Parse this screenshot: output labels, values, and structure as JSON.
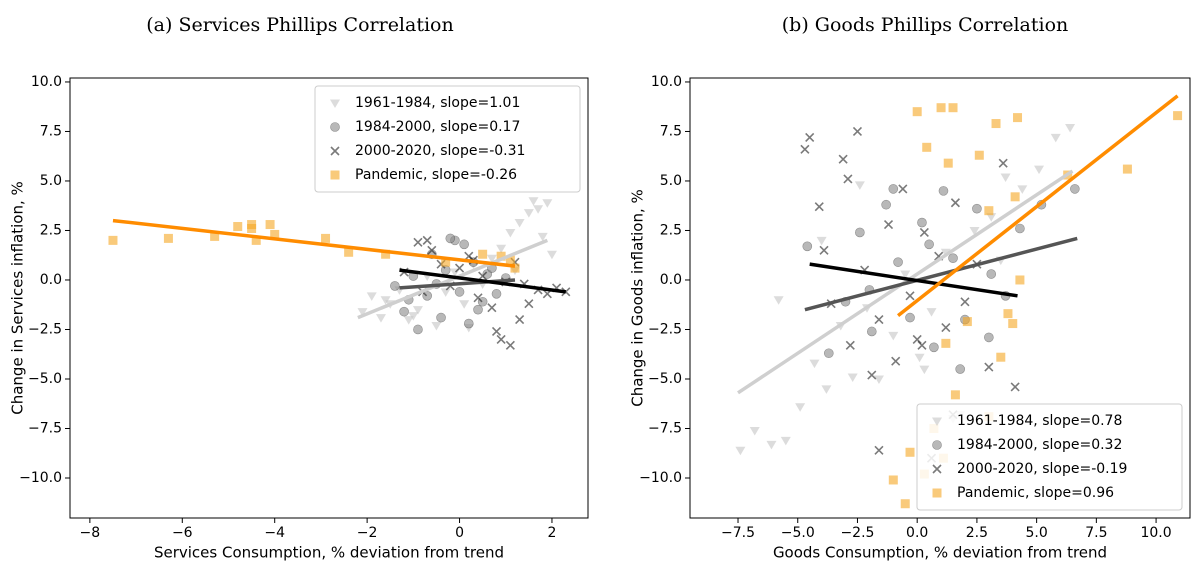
{
  "chart_data": [
    {
      "type": "scatter",
      "title": "(a) Services Phillips Correlation",
      "x_label": "Services Consumption, % deviation from trend",
      "y_label": "Change in Services inflation, %",
      "xlim": [
        -8.43,
        2.78
      ],
      "ylim": [
        -12.02,
        10.2
      ],
      "xticks": [
        {
          "value": -8,
          "label": "−8"
        },
        {
          "value": -6,
          "label": "−6"
        },
        {
          "value": -4,
          "label": "−4"
        },
        {
          "value": -2,
          "label": "−2"
        },
        0,
        2
      ],
      "yticks": [
        {
          "value": -10,
          "label": "−10.0"
        },
        {
          "value": -7.5,
          "label": "−7.5"
        },
        {
          "value": -5,
          "label": "−5.0"
        },
        {
          "value": -2.5,
          "label": "−2.5"
        },
        {
          "value": 0,
          "label": "0.0"
        },
        2.5,
        {
          "value": 5,
          "label": "5.0"
        },
        7.5,
        {
          "value": 10,
          "label": "10.0"
        }
      ],
      "legend": "upper right",
      "series": [
        {
          "name": "1961-1984, slope=1.01",
          "color": "#c4c4c4",
          "marker": "triangle-down",
          "x": [
            -2.1,
            -1.9,
            -1.7,
            -1.5,
            -1.3,
            -1.1,
            -0.9,
            -0.7,
            -0.5,
            -0.3,
            -0.1,
            0.1,
            0.3,
            0.5,
            0.7,
            0.9,
            1.1,
            1.3,
            1.5,
            1.6,
            1.7,
            1.8,
            1.9,
            2.0,
            -1.0,
            0.2,
            1.2,
            -1.6
          ],
          "y": [
            -1.6,
            -0.8,
            -1.9,
            -1.2,
            -0.5,
            -2.0,
            -1.5,
            0.2,
            -2.3,
            -0.6,
            0.4,
            -1.2,
            0.8,
            -0.2,
            1.1,
            1.6,
            2.4,
            2.9,
            3.4,
            4.0,
            3.6,
            2.2,
            3.9,
            1.3,
            -1.8,
            -2.4,
            0.5,
            -1.0
          ],
          "fit": {
            "color": "#cfcfcf",
            "x": [
              -2.2,
              1.9
            ],
            "y": [
              -1.9,
              2.0
            ]
          }
        },
        {
          "name": "1984-2000, slope=0.17",
          "color": "#8a8a8a",
          "marker": "circle",
          "x": [
            -1.4,
            -1.2,
            -1.0,
            -0.9,
            -0.7,
            -0.6,
            -0.4,
            -0.3,
            -0.1,
            0.0,
            0.1,
            0.2,
            0.3,
            0.5,
            0.6,
            0.8,
            1.0,
            -0.5,
            -0.2,
            0.4,
            -1.1,
            0.7
          ],
          "y": [
            -0.3,
            -1.6,
            0.2,
            -2.5,
            -0.8,
            1.3,
            -1.9,
            0.5,
            2.0,
            -0.6,
            1.8,
            -2.2,
            0.9,
            -1.1,
            0.3,
            -0.7,
            0.1,
            -0.2,
            2.1,
            -1.5,
            -1.0,
            0.6
          ],
          "fit": {
            "color": "#555555",
            "x": [
              -1.3,
              1.2
            ],
            "y": [
              -0.4,
              0.0
            ]
          }
        },
        {
          "name": "2000-2020, slope=-0.31",
          "color": "#222222",
          "marker": "x",
          "x": [
            -1.2,
            -0.9,
            -0.8,
            -0.6,
            -0.4,
            -0.2,
            0.0,
            0.2,
            0.4,
            0.5,
            0.7,
            0.9,
            1.0,
            1.1,
            1.3,
            1.5,
            1.7,
            1.9,
            2.1,
            2.3,
            0.8,
            1.2,
            1.4,
            -0.7,
            0.3
          ],
          "y": [
            0.4,
            1.9,
            -0.6,
            1.5,
            0.8,
            -0.3,
            0.6,
            1.2,
            -0.9,
            0.2,
            -1.4,
            -3.0,
            -0.1,
            -3.3,
            -2.0,
            -1.2,
            -0.5,
            -0.7,
            -0.4,
            -0.6,
            -2.6,
            0.9,
            -0.2,
            2.0,
            1.0
          ],
          "fit": {
            "color": "#000000",
            "x": [
              -1.3,
              2.3
            ],
            "y": [
              0.5,
              -0.6
            ]
          }
        },
        {
          "name": "Pandemic, slope=-0.26",
          "color": "#f5a623",
          "marker": "square",
          "x": [
            -7.5,
            -6.3,
            -5.3,
            -4.8,
            -4.5,
            -4.5,
            -4.4,
            -4.1,
            -4.0,
            -2.9,
            -2.4,
            -1.6,
            -0.3,
            0.5,
            0.9,
            1.1,
            1.2
          ],
          "y": [
            2.0,
            2.1,
            2.2,
            2.7,
            2.8,
            2.6,
            2.0,
            2.8,
            2.3,
            2.1,
            1.4,
            1.3,
            0.9,
            1.3,
            1.2,
            1.0,
            0.6
          ],
          "fit": {
            "color": "#ff8c00",
            "x": [
              -7.5,
              1.2
            ],
            "y": [
              3.0,
              0.7
            ]
          }
        }
      ]
    },
    {
      "type": "scatter",
      "title": "(b) Goods Phillips Correlation",
      "x_label": "Goods Consumption, % deviation from trend",
      "y_label": "Change in Goods inflation, %",
      "xlim": [
        -9.51,
        11.42
      ],
      "ylim": [
        -12.02,
        10.2
      ],
      "xticks": [
        {
          "value": -7.5,
          "label": "−7.5"
        },
        {
          "value": -5,
          "label": "−5.0"
        },
        {
          "value": -2.5,
          "label": "−2.5"
        },
        {
          "value": 0,
          "label": "0.0"
        },
        2.5,
        {
          "value": 5,
          "label": "5.0"
        },
        7.5,
        {
          "value": 10,
          "label": "10.0"
        }
      ],
      "yticks": [
        {
          "value": -10,
          "label": "−10.0"
        },
        {
          "value": -7.5,
          "label": "−7.5"
        },
        {
          "value": -5,
          "label": "−5.0"
        },
        {
          "value": -2.5,
          "label": "−2.5"
        },
        {
          "value": 0,
          "label": "0.0"
        },
        2.5,
        {
          "value": 5,
          "label": "5.0"
        },
        7.5,
        {
          "value": 10,
          "label": "10.0"
        }
      ],
      "legend": "lower right",
      "series": [
        {
          "name": "1961-1984, slope=0.78",
          "color": "#c4c4c4",
          "marker": "triangle-down",
          "x": [
            -7.4,
            -6.8,
            -6.1,
            -5.5,
            -4.9,
            -4.3,
            -3.8,
            -3.2,
            -2.7,
            -2.1,
            -1.6,
            -1.0,
            -0.5,
            0.1,
            0.6,
            1.2,
            1.8,
            2.4,
            3.1,
            3.7,
            4.4,
            5.1,
            5.8,
            6.4,
            -5.8,
            -4.0,
            -2.4,
            1.5,
            3.5,
            0.3
          ],
          "y": [
            -8.6,
            -7.6,
            -8.3,
            -8.1,
            -6.4,
            -4.2,
            -5.5,
            -2.3,
            -4.9,
            -1.4,
            -5.0,
            -2.8,
            0.3,
            -3.9,
            -1.6,
            1.4,
            -6.8,
            2.5,
            3.2,
            5.2,
            4.6,
            5.6,
            7.2,
            7.7,
            -1.0,
            2.0,
            4.8,
            -7.0,
            1.0,
            -4.5
          ],
          "fit": {
            "color": "#cfcfcf",
            "x": [
              -7.5,
              6.5
            ],
            "y": [
              -5.7,
              5.5
            ]
          }
        },
        {
          "name": "1984-2000, slope=0.32",
          "color": "#8a8a8a",
          "marker": "circle",
          "x": [
            -4.6,
            -3.7,
            -3.0,
            -2.4,
            -1.9,
            -1.3,
            -0.8,
            -0.3,
            0.2,
            0.7,
            1.1,
            1.5,
            2.0,
            2.5,
            3.1,
            3.7,
            4.3,
            5.2,
            6.6,
            -2.0,
            0.5,
            1.8,
            -1.0,
            3.0
          ],
          "y": [
            1.7,
            -3.7,
            -1.1,
            2.4,
            -2.6,
            3.8,
            0.9,
            -1.9,
            2.9,
            -3.4,
            4.5,
            1.1,
            -2.0,
            3.6,
            0.3,
            -0.8,
            2.6,
            3.8,
            4.6,
            -0.5,
            1.8,
            -4.5,
            4.6,
            -2.9
          ],
          "fit": {
            "color": "#555555",
            "x": [
              -4.7,
              6.7
            ],
            "y": [
              -1.5,
              2.1
            ]
          }
        },
        {
          "name": "2000-2020, slope=-0.19",
          "color": "#222222",
          "marker": "x",
          "x": [
            -4.7,
            -4.5,
            -4.1,
            -3.9,
            -3.6,
            -3.1,
            -2.8,
            -2.5,
            -2.2,
            -1.9,
            -1.6,
            -1.2,
            -0.9,
            -0.6,
            -0.3,
            0.0,
            0.3,
            0.6,
            0.9,
            1.2,
            1.6,
            2.0,
            2.5,
            3.0,
            3.6,
            4.1,
            -1.6,
            0.2,
            -2.9,
            1.5
          ],
          "y": [
            6.6,
            7.2,
            3.7,
            1.5,
            -1.2,
            6.1,
            -3.3,
            7.5,
            0.5,
            -4.8,
            -8.6,
            2.8,
            -4.1,
            4.6,
            -0.8,
            -3.0,
            2.4,
            -9.0,
            1.2,
            -2.4,
            3.9,
            -1.1,
            0.8,
            -4.4,
            5.9,
            -5.4,
            -2.0,
            -3.3,
            5.1,
            -6.8
          ],
          "fit": {
            "color": "#000000",
            "x": [
              -4.5,
              4.2
            ],
            "y": [
              0.8,
              -0.8
            ]
          }
        },
        {
          "name": "Pandemic, slope=0.96",
          "color": "#f5a623",
          "marker": "square",
          "x": [
            0.0,
            1.0,
            1.5,
            3.3,
            4.2,
            0.4,
            1.3,
            2.6,
            6.3,
            8.8,
            10.9,
            3.0,
            4.3,
            1.2,
            3.8,
            4.0,
            2.1,
            3.5,
            1.6,
            0.7,
            -0.3,
            -1.0,
            -0.5,
            0.3,
            1.1,
            3.0,
            4.1
          ],
          "y": [
            8.5,
            8.7,
            8.7,
            7.9,
            8.2,
            6.7,
            5.9,
            6.3,
            5.3,
            5.6,
            8.3,
            3.5,
            0.0,
            -3.2,
            -1.7,
            -2.2,
            -2.1,
            -3.9,
            -5.8,
            -7.5,
            -8.7,
            -10.1,
            -11.3,
            -9.8,
            -9.0,
            -6.9,
            4.2
          ],
          "fit": {
            "color": "#ff8c00",
            "x": [
              -0.8,
              10.9
            ],
            "y": [
              -1.8,
              9.3
            ]
          }
        }
      ]
    }
  ]
}
